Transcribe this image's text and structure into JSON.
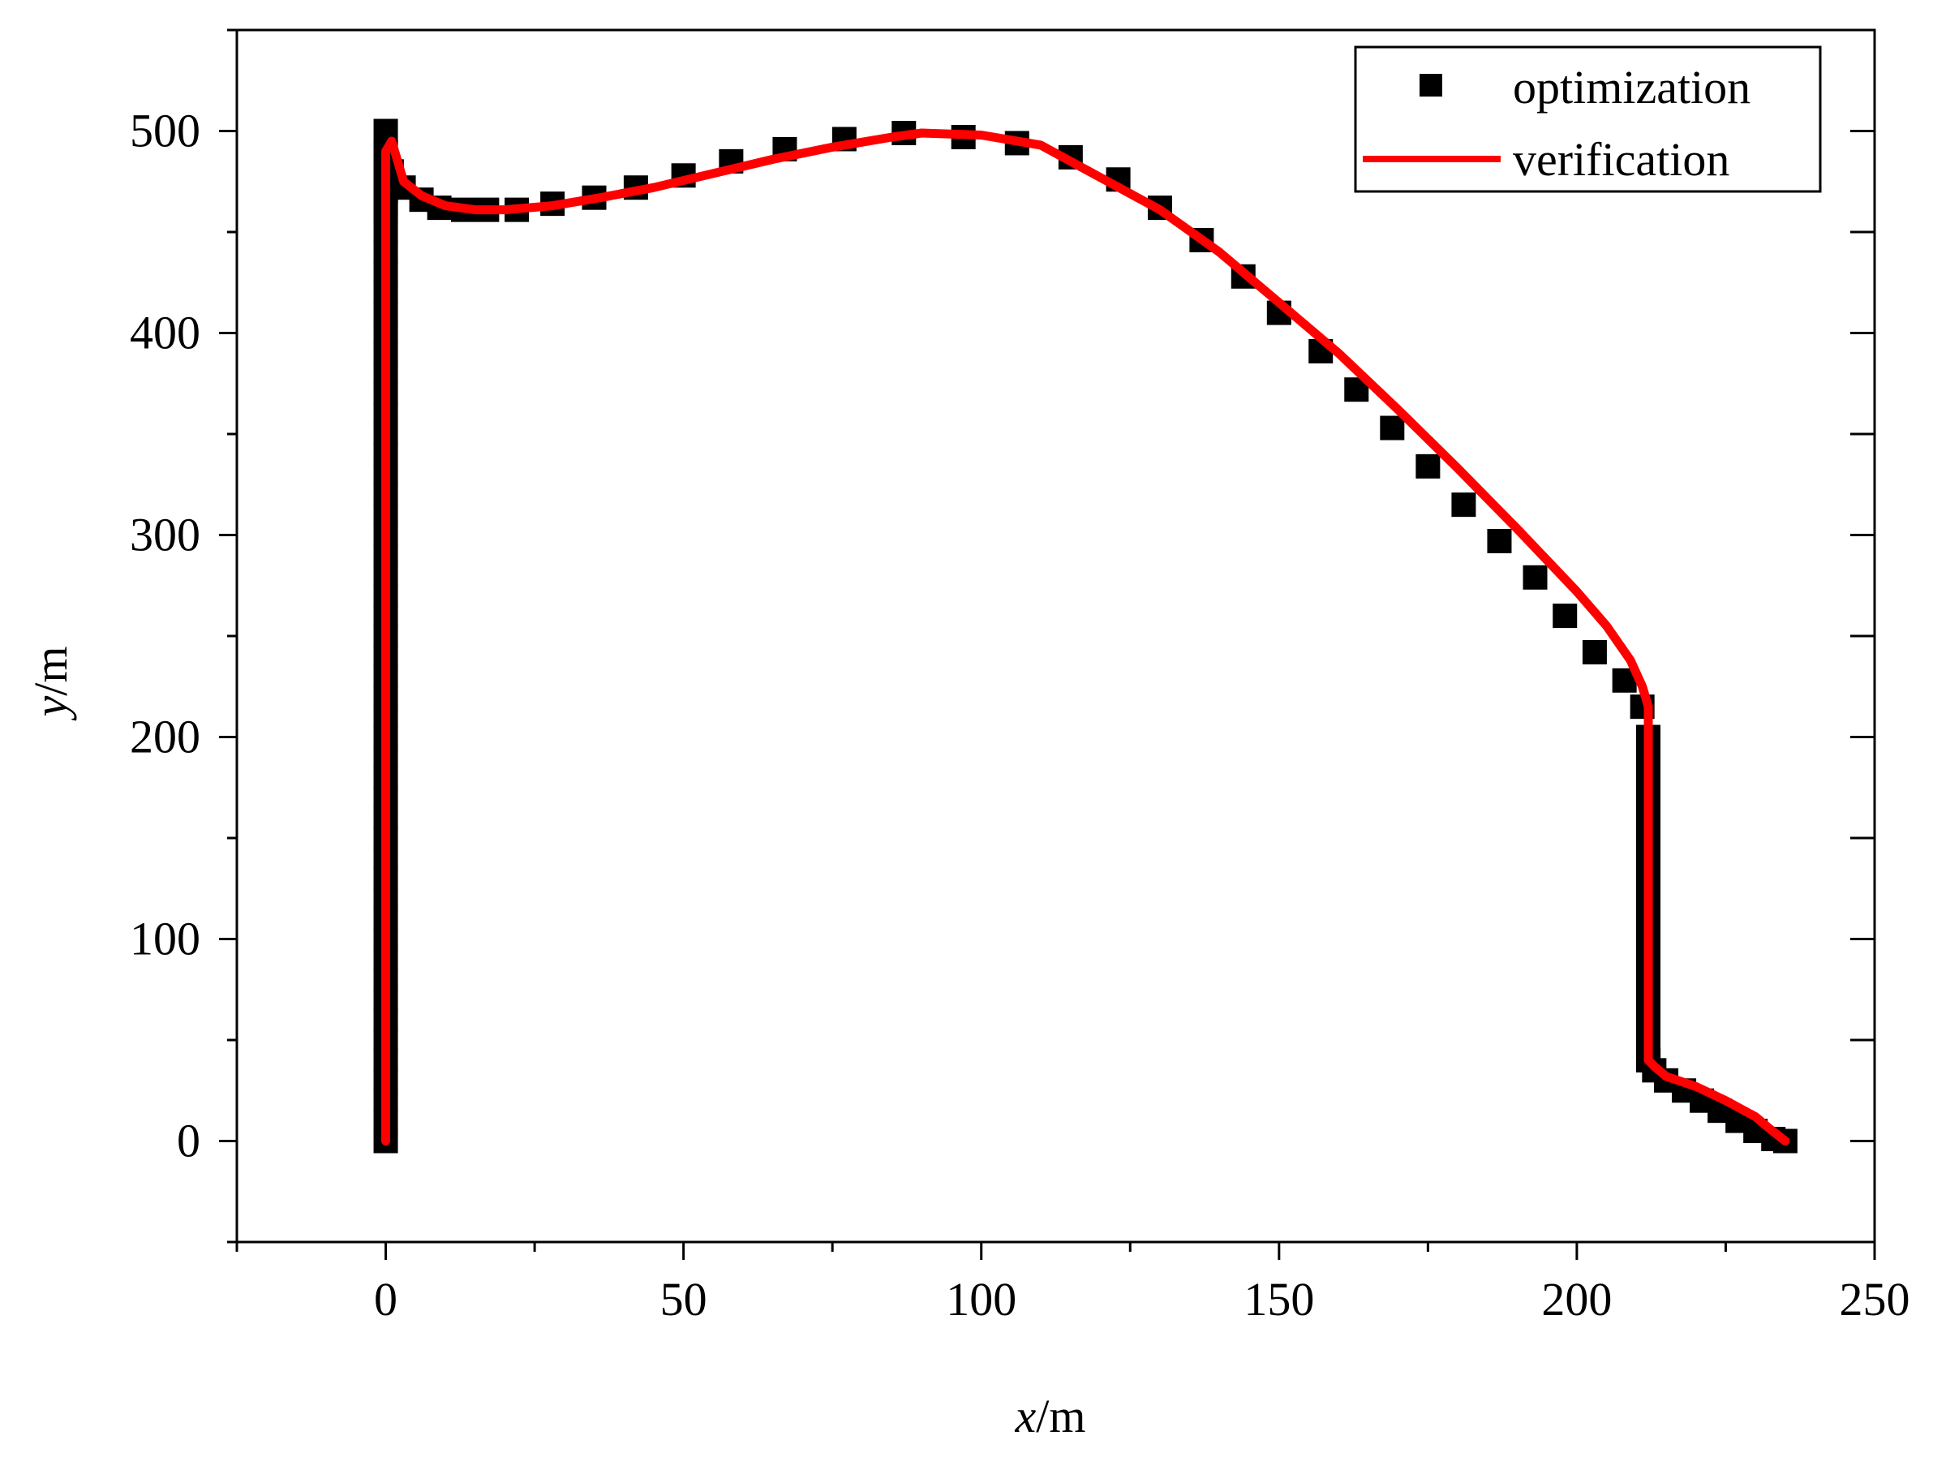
{
  "chart_data": {
    "type": "line",
    "title": "",
    "xlabel_var": "x",
    "xlabel_unit": "/m",
    "ylabel_var": "y",
    "ylabel_unit": "/m",
    "xlim": [
      -25,
      250
    ],
    "ylim": [
      -50,
      550
    ],
    "xticks": [
      0,
      50,
      100,
      150,
      200,
      250
    ],
    "yticks": [
      0,
      100,
      200,
      300,
      400,
      500
    ],
    "grid": false,
    "legend_position": "top-right",
    "colors": {
      "optimization": "#000000",
      "verification": "#ff0000"
    },
    "series": [
      {
        "name": "optimization",
        "style": "square-markers",
        "x": [
          0,
          0,
          0,
          0,
          0,
          0,
          0,
          0,
          0,
          0,
          0,
          0,
          0,
          0,
          0,
          0,
          0,
          0,
          0,
          0,
          0,
          0,
          0,
          0,
          0,
          0,
          0,
          0,
          0,
          0,
          0,
          0,
          0,
          0,
          0,
          0,
          0,
          0,
          0,
          0,
          0,
          0,
          0,
          0,
          0,
          0,
          0,
          0,
          0,
          0,
          0,
          0,
          0,
          0,
          0,
          0,
          1,
          3,
          6,
          9,
          13,
          17,
          22,
          28,
          35,
          42,
          50,
          58,
          67,
          77,
          87,
          97,
          106,
          115,
          123,
          130,
          137,
          144,
          150,
          157,
          163,
          169,
          175,
          181,
          187,
          193,
          198,
          203,
          208,
          211,
          212,
          212,
          212,
          212,
          212,
          212,
          212,
          212,
          212,
          212,
          212,
          212,
          212,
          212,
          212,
          212,
          212,
          212,
          212,
          212,
          212,
          212,
          212,
          212,
          212,
          212,
          212,
          212,
          212,
          212,
          212,
          213,
          215,
          218,
          221,
          224,
          227,
          230,
          233,
          235
        ],
        "y": [
          0,
          10,
          20,
          30,
          40,
          50,
          60,
          70,
          80,
          90,
          100,
          110,
          120,
          130,
          140,
          150,
          160,
          170,
          180,
          190,
          200,
          210,
          220,
          230,
          240,
          250,
          260,
          270,
          280,
          290,
          300,
          310,
          320,
          330,
          340,
          350,
          360,
          370,
          380,
          390,
          400,
          410,
          420,
          430,
          440,
          450,
          460,
          470,
          480,
          490,
          500,
          490,
          480,
          470,
          465,
          463,
          480,
          472,
          466,
          462,
          461,
          461,
          461,
          464,
          467,
          472,
          478,
          485,
          491,
          496,
          499,
          497,
          494,
          487,
          476,
          462,
          446,
          428,
          410,
          391,
          372,
          353,
          334,
          315,
          297,
          279,
          260,
          242,
          228,
          215,
          200,
          190,
          180,
          170,
          160,
          150,
          140,
          130,
          120,
          110,
          100,
          90,
          80,
          70,
          60,
          50,
          45,
          43,
          42,
          41,
          40,
          40,
          40,
          40,
          40,
          40,
          40,
          40,
          40,
          40,
          40,
          35,
          30,
          25,
          20,
          15,
          10,
          5,
          1,
          0
        ]
      },
      {
        "name": "verification",
        "style": "line",
        "x": [
          0,
          0,
          0,
          0,
          0,
          0,
          0,
          0,
          0,
          0,
          0,
          0,
          0,
          0,
          1,
          3,
          6,
          10,
          15,
          20,
          28,
          36,
          45,
          55,
          65,
          75,
          85,
          90,
          100,
          110,
          120,
          130,
          140,
          150,
          160,
          170,
          180,
          190,
          200,
          205,
          209,
          211,
          212,
          212,
          212,
          212,
          212,
          212,
          212,
          212,
          212,
          212,
          212,
          212,
          212,
          213,
          215,
          220,
          225,
          230,
          232,
          235
        ],
        "y": [
          0,
          20,
          40,
          60,
          80,
          100,
          150,
          200,
          250,
          300,
          350,
          400,
          450,
          490,
          495,
          475,
          468,
          463,
          461,
          461,
          463,
          467,
          472,
          479,
          486,
          492,
          497,
          499,
          498,
          493,
          477,
          461,
          440,
          415,
          390,
          362,
          333,
          303,
          272,
          255,
          238,
          225,
          215,
          200,
          180,
          150,
          120,
          100,
          90,
          80,
          70,
          60,
          50,
          45,
          40,
          37,
          32,
          27,
          20,
          12,
          7,
          0
        ]
      }
    ]
  }
}
